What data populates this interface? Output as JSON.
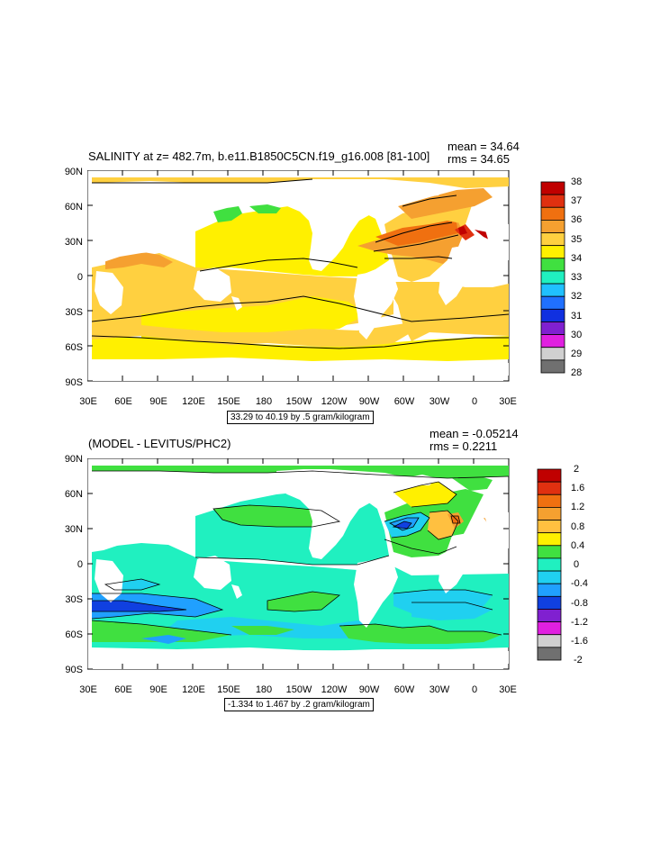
{
  "panels": [
    {
      "title": "SALINITY at z= 482.7m, b.e11.B1850C5CN.f19_g16.008 [81-100]",
      "mean": "mean = 34.64",
      "rms": "rms = 34.65",
      "contour_info": "33.29 to 40.19 by .5 gram/kilogram",
      "lat_labels": [
        "90N",
        "60N",
        "30N",
        "0",
        "30S",
        "60S",
        "90S"
      ],
      "lon_labels": [
        "30E",
        "60E",
        "90E",
        "120E",
        "150E",
        "180",
        "150W",
        "120W",
        "90W",
        "60W",
        "30W",
        "0",
        "30E"
      ],
      "colorbar": {
        "labels": [
          "38",
          "37",
          "36",
          "35",
          "34",
          "33",
          "32",
          "31",
          "30",
          "29",
          "28"
        ],
        "colors": [
          "#c00000",
          "#e03010",
          "#f07010",
          "#f5a030",
          "#ffd040",
          "#fff000",
          "#40e040",
          "#20f0c0",
          "#20c0ff",
          "#2070ff",
          "#1030e0",
          "#8020d0",
          "#e020e0",
          "#d0d0d0",
          "#707070"
        ]
      }
    },
    {
      "title": "(MODEL - LEVITUS/PHC2)",
      "mean": "mean = -0.05214",
      "rms": "rms = 0.2211",
      "contour_info": "-1.334 to 1.467 by .2 gram/kilogram",
      "lat_labels": [
        "90N",
        "60N",
        "30N",
        "0",
        "30S",
        "60S",
        "90S"
      ],
      "lon_labels": [
        "30E",
        "60E",
        "90E",
        "120E",
        "150E",
        "180",
        "150W",
        "120W",
        "90W",
        "60W",
        "30W",
        "0",
        "30E"
      ],
      "colorbar": {
        "labels": [
          "2",
          "1.6",
          "1.2",
          "0.8",
          "0.4",
          "0",
          "-0.4",
          "-0.8",
          "-1.2",
          "-1.6",
          "-2"
        ],
        "colors": [
          "#c00000",
          "#e03010",
          "#f07010",
          "#f5a030",
          "#ffc040",
          "#fff000",
          "#40e040",
          "#20f0c0",
          "#20d0f0",
          "#20a0ff",
          "#1040e0",
          "#8020d0",
          "#e020e0",
          "#d0d0d0",
          "#707070"
        ]
      }
    }
  ]
}
